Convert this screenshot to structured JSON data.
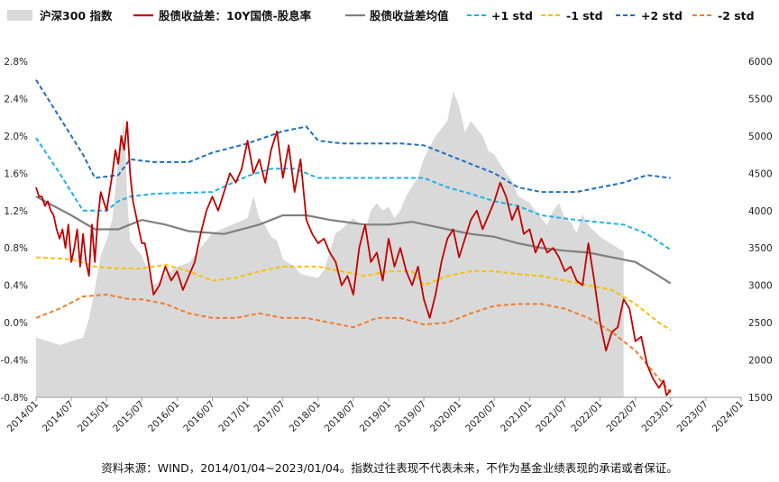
{
  "chart_data": {
    "type": "line",
    "legend_position": "top",
    "grid": false,
    "legend": {
      "index": "沪深300 指数",
      "spread": "股债收益差：10Y国债-股息率",
      "mean": "股债收益差均值",
      "p1": "+1 std",
      "m1": "-1 std",
      "p2": "+2 std",
      "m2": "-2 std"
    },
    "y_left": {
      "min": -0.8,
      "max": 2.8,
      "ticks": [
        "2.8%",
        "2.4%",
        "2.0%",
        "1.6%",
        "1.2%",
        "0.8%",
        "0.4%",
        "0.0%",
        "-0.4%",
        "-0.8%"
      ]
    },
    "y_right": {
      "min": 1500,
      "max": 6000,
      "ticks": [
        "6000",
        "5500",
        "5000",
        "4500",
        "4000",
        "3500",
        "3000",
        "2500",
        "2000",
        "1500"
      ]
    },
    "x_labels": [
      "2014/01",
      "2014/07",
      "2015/01",
      "2015/07",
      "2016/01",
      "2016/07",
      "2017/01",
      "2017/07",
      "2018/01",
      "2018/07",
      "2019/01",
      "2019/07",
      "2020/01",
      "2020/07",
      "2021/01",
      "2021/07",
      "2022/01",
      "2022/07",
      "2023/01",
      "2023/07",
      "2024/01"
    ],
    "x_range": [
      "2014/01",
      "2024/01"
    ],
    "colors": {
      "index": "#d9d9d9",
      "spread": "#c00000",
      "mean": "#7f7f7f",
      "p1": "#1fb0e8",
      "m1": "#f5c000",
      "p2": "#1f6fbf",
      "m2": "#ed7d31"
    },
    "series": {
      "index": [
        [
          0,
          2300
        ],
        [
          2,
          2250
        ],
        [
          4,
          2200
        ],
        [
          6,
          2250
        ],
        [
          8,
          2300
        ],
        [
          9,
          2550
        ],
        [
          10,
          2950
        ],
        [
          11,
          3400
        ],
        [
          12,
          3600
        ],
        [
          13,
          3900
        ],
        [
          14,
          4700
        ],
        [
          15,
          5200
        ],
        [
          15.5,
          4200
        ],
        [
          16,
          3600
        ],
        [
          17,
          3500
        ],
        [
          18,
          3400
        ],
        [
          20,
          3000
        ],
        [
          21,
          3050
        ],
        [
          22,
          3150
        ],
        [
          24,
          3250
        ],
        [
          26,
          3300
        ],
        [
          27,
          3400
        ],
        [
          30,
          3700
        ],
        [
          33,
          3800
        ],
        [
          36,
          3900
        ],
        [
          37,
          4200
        ],
        [
          38,
          3900
        ],
        [
          39,
          3800
        ],
        [
          40,
          3650
        ],
        [
          41,
          3600
        ],
        [
          42,
          3350
        ],
        [
          44,
          3250
        ],
        [
          45,
          3150
        ],
        [
          48,
          3100
        ],
        [
          49,
          3200
        ],
        [
          51,
          3700
        ],
        [
          52,
          3750
        ],
        [
          54,
          3900
        ],
        [
          56,
          3750
        ],
        [
          57,
          4000
        ],
        [
          58,
          4100
        ],
        [
          59,
          4000
        ],
        [
          60,
          4050
        ],
        [
          61,
          3900
        ],
        [
          62,
          4000
        ],
        [
          63,
          4200
        ],
        [
          65,
          4450
        ],
        [
          66,
          4700
        ],
        [
          68,
          5000
        ],
        [
          70,
          5200
        ],
        [
          71,
          5600
        ],
        [
          72,
          5400
        ],
        [
          73,
          5050
        ],
        [
          74,
          5200
        ],
        [
          76,
          5000
        ],
        [
          77,
          4800
        ],
        [
          78,
          4750
        ],
        [
          80,
          4500
        ],
        [
          81,
          4400
        ],
        [
          82,
          4200
        ],
        [
          84,
          4100
        ],
        [
          86,
          3900
        ],
        [
          87,
          3800
        ],
        [
          88,
          4000
        ],
        [
          89,
          4100
        ],
        [
          90,
          3900
        ],
        [
          91,
          3850
        ],
        [
          92,
          3700
        ],
        [
          93,
          3950
        ],
        [
          94,
          3800
        ],
        [
          96,
          3650
        ],
        [
          98,
          3550
        ],
        [
          99,
          3500
        ],
        [
          100,
          3450
        ]
      ],
      "spread": [
        [
          0,
          1.45
        ],
        [
          0.5,
          1.35
        ],
        [
          1,
          1.35
        ],
        [
          1.5,
          1.25
        ],
        [
          2,
          1.3
        ],
        [
          2.5,
          1.2
        ],
        [
          3,
          1.15
        ],
        [
          3.5,
          1.0
        ],
        [
          4,
          0.9
        ],
        [
          4.5,
          1.0
        ],
        [
          5,
          0.8
        ],
        [
          5.5,
          1.05
        ],
        [
          6,
          0.65
        ],
        [
          6.5,
          0.8
        ],
        [
          7,
          1.0
        ],
        [
          7.5,
          0.6
        ],
        [
          8,
          0.95
        ],
        [
          8.5,
          0.65
        ],
        [
          9,
          0.5
        ],
        [
          9.5,
          1.05
        ],
        [
          10,
          0.65
        ],
        [
          10.5,
          1.1
        ],
        [
          11,
          1.4
        ],
        [
          11.5,
          1.3
        ],
        [
          12,
          1.2
        ],
        [
          12.5,
          1.4
        ],
        [
          13,
          1.6
        ],
        [
          13.5,
          1.85
        ],
        [
          14,
          1.7
        ],
        [
          14.5,
          2.0
        ],
        [
          15,
          1.85
        ],
        [
          15.5,
          2.15
        ],
        [
          16,
          1.6
        ],
        [
          16.5,
          1.3
        ],
        [
          17,
          1.15
        ],
        [
          17.5,
          1.0
        ],
        [
          18,
          0.85
        ],
        [
          18.5,
          0.85
        ],
        [
          19,
          0.7
        ],
        [
          19.5,
          0.5
        ],
        [
          20,
          0.3
        ],
        [
          21,
          0.4
        ],
        [
          22,
          0.6
        ],
        [
          23,
          0.45
        ],
        [
          24,
          0.55
        ],
        [
          25,
          0.35
        ],
        [
          26,
          0.5
        ],
        [
          27,
          0.65
        ],
        [
          28,
          0.95
        ],
        [
          29,
          1.2
        ],
        [
          30,
          1.35
        ],
        [
          31,
          1.2
        ],
        [
          32,
          1.4
        ],
        [
          33,
          1.6
        ],
        [
          34,
          1.5
        ],
        [
          35,
          1.65
        ],
        [
          36,
          1.95
        ],
        [
          37,
          1.6
        ],
        [
          38,
          1.75
        ],
        [
          39,
          1.5
        ],
        [
          40,
          1.85
        ],
        [
          41,
          2.05
        ],
        [
          42,
          1.55
        ],
        [
          43,
          1.9
        ],
        [
          44,
          1.4
        ],
        [
          45,
          1.75
        ],
        [
          46,
          1.1
        ],
        [
          47,
          0.95
        ],
        [
          48,
          0.85
        ],
        [
          49,
          0.9
        ],
        [
          50,
          0.75
        ],
        [
          51,
          0.65
        ],
        [
          52,
          0.4
        ],
        [
          53,
          0.5
        ],
        [
          54,
          0.3
        ],
        [
          55,
          0.8
        ],
        [
          56,
          1.05
        ],
        [
          57,
          0.65
        ],
        [
          58,
          0.75
        ],
        [
          59,
          0.45
        ],
        [
          60,
          0.9
        ],
        [
          61,
          0.6
        ],
        [
          62,
          0.8
        ],
        [
          63,
          0.55
        ],
        [
          64,
          0.4
        ],
        [
          65,
          0.6
        ],
        [
          66,
          0.25
        ],
        [
          67,
          0.05
        ],
        [
          68,
          0.3
        ],
        [
          69,
          0.65
        ],
        [
          70,
          0.9
        ],
        [
          71,
          1.0
        ],
        [
          72,
          0.7
        ],
        [
          73,
          0.9
        ],
        [
          74,
          1.1
        ],
        [
          75,
          1.2
        ],
        [
          76,
          1.0
        ],
        [
          77,
          1.15
        ],
        [
          78,
          1.3
        ],
        [
          79,
          1.5
        ],
        [
          80,
          1.35
        ],
        [
          81,
          1.1
        ],
        [
          82,
          1.25
        ],
        [
          83,
          0.95
        ],
        [
          84,
          1.0
        ],
        [
          85,
          0.75
        ],
        [
          86,
          0.9
        ],
        [
          87,
          0.75
        ],
        [
          88,
          0.8
        ],
        [
          89,
          0.7
        ],
        [
          90,
          0.55
        ],
        [
          91,
          0.6
        ],
        [
          92,
          0.45
        ],
        [
          93,
          0.4
        ],
        [
          94,
          0.85
        ],
        [
          95,
          0.45
        ],
        [
          96,
          0.0
        ],
        [
          97,
          -0.3
        ],
        [
          98,
          -0.1
        ],
        [
          99,
          -0.05
        ],
        [
          100,
          0.25
        ],
        [
          101,
          0.15
        ],
        [
          102,
          -0.2
        ],
        [
          103,
          -0.15
        ],
        [
          104,
          -0.45
        ],
        [
          105,
          -0.6
        ],
        [
          106,
          -0.7
        ],
        [
          106.8,
          -0.62
        ],
        [
          107.3,
          -0.78
        ],
        [
          108,
          -0.72
        ]
      ],
      "mean": [
        [
          0,
          1.35
        ],
        [
          6,
          1.15
        ],
        [
          10,
          1.0
        ],
        [
          14,
          1.0
        ],
        [
          16,
          1.05
        ],
        [
          18,
          1.1
        ],
        [
          22,
          1.05
        ],
        [
          26,
          0.98
        ],
        [
          32,
          0.95
        ],
        [
          38,
          1.05
        ],
        [
          42,
          1.15
        ],
        [
          46,
          1.15
        ],
        [
          50,
          1.1
        ],
        [
          56,
          1.05
        ],
        [
          60,
          1.05
        ],
        [
          64,
          1.08
        ],
        [
          70,
          1.0
        ],
        [
          74,
          0.95
        ],
        [
          78,
          0.92
        ],
        [
          82,
          0.85
        ],
        [
          86,
          0.8
        ],
        [
          90,
          0.77
        ],
        [
          94,
          0.75
        ],
        [
          98,
          0.7
        ],
        [
          102,
          0.65
        ],
        [
          106,
          0.5
        ],
        [
          108,
          0.42
        ]
      ],
      "p1": [
        [
          0,
          1.98
        ],
        [
          4,
          1.6
        ],
        [
          8,
          1.2
        ],
        [
          12,
          1.2
        ],
        [
          14,
          1.3
        ],
        [
          16,
          1.35
        ],
        [
          20,
          1.38
        ],
        [
          30,
          1.4
        ],
        [
          36,
          1.57
        ],
        [
          40,
          1.65
        ],
        [
          44,
          1.65
        ],
        [
          48,
          1.55
        ],
        [
          54,
          1.55
        ],
        [
          60,
          1.55
        ],
        [
          66,
          1.55
        ],
        [
          70,
          1.45
        ],
        [
          74,
          1.38
        ],
        [
          78,
          1.3
        ],
        [
          82,
          1.25
        ],
        [
          86,
          1.15
        ],
        [
          92,
          1.1
        ],
        [
          100,
          1.05
        ],
        [
          104,
          0.95
        ],
        [
          108,
          0.78
        ]
      ],
      "m1": [
        [
          0,
          0.7
        ],
        [
          6,
          0.68
        ],
        [
          10,
          0.6
        ],
        [
          14,
          0.58
        ],
        [
          18,
          0.58
        ],
        [
          22,
          0.62
        ],
        [
          26,
          0.55
        ],
        [
          30,
          0.45
        ],
        [
          34,
          0.48
        ],
        [
          38,
          0.55
        ],
        [
          42,
          0.6
        ],
        [
          48,
          0.6
        ],
        [
          52,
          0.55
        ],
        [
          56,
          0.5
        ],
        [
          60,
          0.55
        ],
        [
          64,
          0.55
        ],
        [
          66,
          0.4
        ],
        [
          70,
          0.5
        ],
        [
          74,
          0.55
        ],
        [
          78,
          0.55
        ],
        [
          82,
          0.52
        ],
        [
          86,
          0.5
        ],
        [
          90,
          0.45
        ],
        [
          94,
          0.4
        ],
        [
          98,
          0.35
        ],
        [
          102,
          0.2
        ],
        [
          106,
          0.0
        ],
        [
          108,
          -0.08
        ]
      ],
      "p2": [
        [
          0,
          2.6
        ],
        [
          4,
          2.2
        ],
        [
          8,
          1.8
        ],
        [
          10,
          1.55
        ],
        [
          14,
          1.58
        ],
        [
          16,
          1.75
        ],
        [
          20,
          1.72
        ],
        [
          26,
          1.72
        ],
        [
          30,
          1.82
        ],
        [
          36,
          1.92
        ],
        [
          42,
          2.05
        ],
        [
          46,
          2.1
        ],
        [
          48,
          1.95
        ],
        [
          52,
          1.92
        ],
        [
          56,
          1.92
        ],
        [
          62,
          1.92
        ],
        [
          66,
          1.9
        ],
        [
          70,
          1.8
        ],
        [
          74,
          1.7
        ],
        [
          78,
          1.6
        ],
        [
          82,
          1.45
        ],
        [
          86,
          1.4
        ],
        [
          92,
          1.4
        ],
        [
          96,
          1.45
        ],
        [
          100,
          1.5
        ],
        [
          104,
          1.58
        ],
        [
          108,
          1.55
        ]
      ],
      "m2": [
        [
          0,
          0.05
        ],
        [
          4,
          0.15
        ],
        [
          8,
          0.28
        ],
        [
          12,
          0.3
        ],
        [
          16,
          0.25
        ],
        [
          18,
          0.25
        ],
        [
          22,
          0.2
        ],
        [
          26,
          0.1
        ],
        [
          30,
          0.05
        ],
        [
          34,
          0.05
        ],
        [
          38,
          0.1
        ],
        [
          42,
          0.05
        ],
        [
          46,
          0.05
        ],
        [
          50,
          0.0
        ],
        [
          54,
          -0.05
        ],
        [
          58,
          0.05
        ],
        [
          62,
          0.05
        ],
        [
          66,
          -0.02
        ],
        [
          70,
          0.0
        ],
        [
          74,
          0.1
        ],
        [
          78,
          0.18
        ],
        [
          82,
          0.2
        ],
        [
          86,
          0.2
        ],
        [
          90,
          0.15
        ],
        [
          94,
          0.05
        ],
        [
          98,
          -0.1
        ],
        [
          102,
          -0.3
        ],
        [
          106,
          -0.6
        ],
        [
          108,
          -0.75
        ]
      ]
    }
  },
  "footnote": "资料来源：WIND，2014/01/04~2023/01/04。指数过往表现不代表未来，不作为基金业绩表现的承诺或者保证。"
}
